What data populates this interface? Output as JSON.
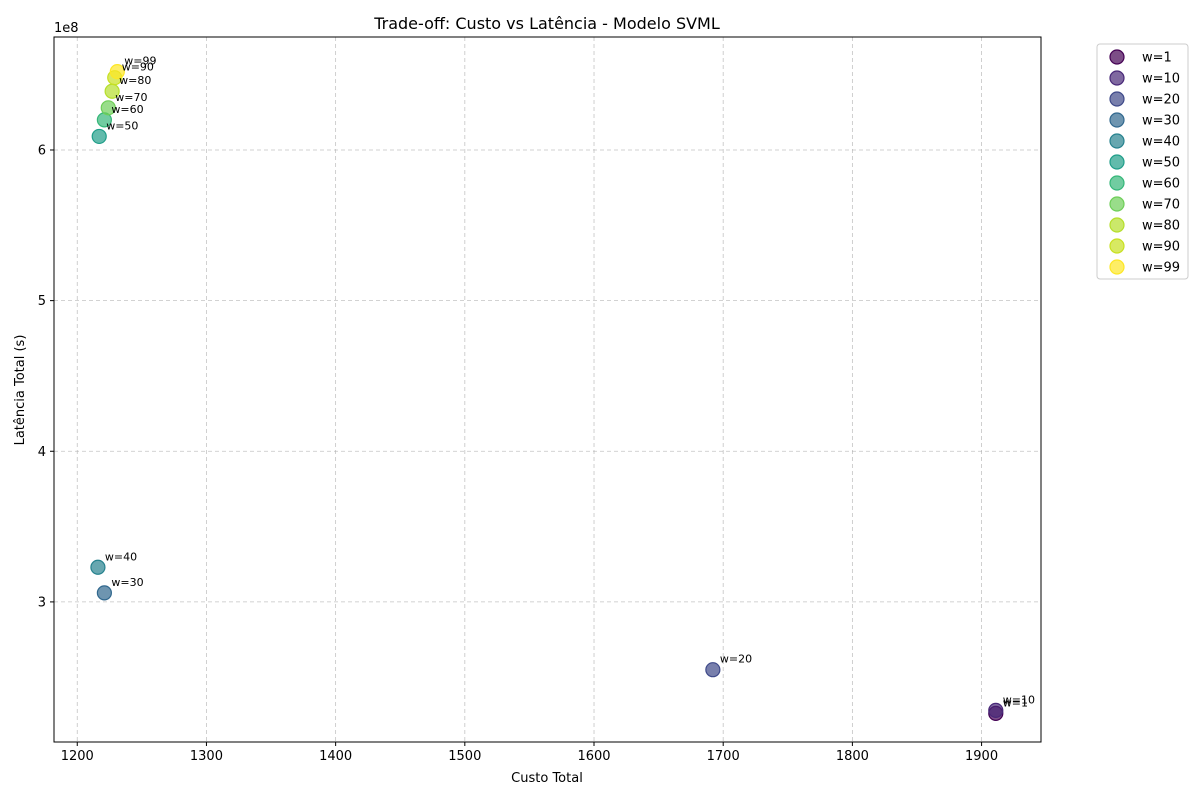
{
  "chart_data": {
    "type": "scatter",
    "title": "Trade-off: Custo vs Latência - Modelo SVML",
    "xlabel": "Custo Total",
    "ylabel": "Latência Total (s)",
    "y_offset_label": "1e8",
    "xlim": [
      1182,
      1946
    ],
    "ylim": [
      2.07,
      6.75
    ],
    "x_ticks": [
      {
        "value": 1200,
        "label": "1200"
      },
      {
        "value": 1300,
        "label": "1300"
      },
      {
        "value": 1400,
        "label": "1400"
      },
      {
        "value": 1500,
        "label": "1500"
      },
      {
        "value": 1600,
        "label": "1600"
      },
      {
        "value": 1700,
        "label": "1700"
      },
      {
        "value": 1800,
        "label": "1800"
      },
      {
        "value": 1900,
        "label": "1900"
      }
    ],
    "y_ticks": [
      {
        "value": 3,
        "label": "3"
      },
      {
        "value": 4,
        "label": "4"
      },
      {
        "value": 5,
        "label": "5"
      },
      {
        "value": 6,
        "label": "6"
      }
    ],
    "grid": true,
    "legend_position": "outside-top-right",
    "series": [
      {
        "name": "w=1",
        "label": "w=1",
        "x": 1911,
        "y": 2.26,
        "color": "#440154"
      },
      {
        "name": "w=10",
        "label": "w=10",
        "x": 1911,
        "y": 2.28,
        "color": "#482878"
      },
      {
        "name": "w=20",
        "label": "w=20",
        "x": 1692,
        "y": 2.55,
        "color": "#3e4989"
      },
      {
        "name": "w=30",
        "label": "w=30",
        "x": 1221,
        "y": 3.06,
        "color": "#31688e"
      },
      {
        "name": "w=40",
        "label": "w=40",
        "x": 1216,
        "y": 3.23,
        "color": "#26828e"
      },
      {
        "name": "w=50",
        "label": "w=50",
        "x": 1217,
        "y": 6.09,
        "color": "#1f9e89"
      },
      {
        "name": "w=60",
        "label": "w=60",
        "x": 1221,
        "y": 6.2,
        "color": "#35b779"
      },
      {
        "name": "w=70",
        "label": "w=70",
        "x": 1224,
        "y": 6.28,
        "color": "#6ece58"
      },
      {
        "name": "w=80",
        "label": "w=80",
        "x": 1227,
        "y": 6.39,
        "color": "#b5de2b"
      },
      {
        "name": "w=90",
        "label": "w=90",
        "x": 1229,
        "y": 6.48,
        "color": "#c8e020"
      },
      {
        "name": "w=99",
        "label": "w=99",
        "x": 1231,
        "y": 6.52,
        "color": "#fde725"
      }
    ]
  }
}
